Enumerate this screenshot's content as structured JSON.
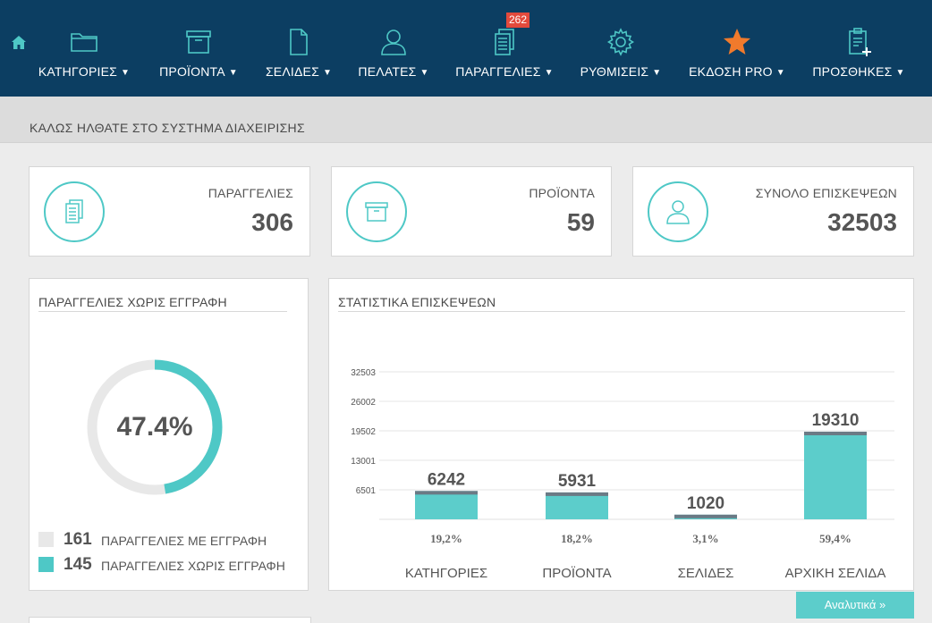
{
  "nav": {
    "home_icon": "home-icon",
    "items": [
      {
        "label": "ΚΑΤΗΓΟΡΙΕΣ",
        "icon": "folder-icon"
      },
      {
        "label": "ΠΡΟΪΟΝΤΑ",
        "icon": "archive-box-icon"
      },
      {
        "label": "ΣΕΛΙΔΕΣ",
        "icon": "page-icon"
      },
      {
        "label": "ΠΕΛΑΤΕΣ",
        "icon": "user-icon"
      },
      {
        "label": "ΠΑΡΑΓΓΕΛΙΕΣ",
        "icon": "orders-icon",
        "badge": "262"
      },
      {
        "label": "ΡΥΘΜΙΣΕΙΣ",
        "icon": "gear-icon"
      },
      {
        "label": "ΕΚΔΟΣΗ PRO",
        "icon": "star-icon"
      },
      {
        "label": "ΠΡΟΣΘΗΚΕΣ",
        "icon": "clipboard-add-icon"
      }
    ]
  },
  "page_title": "ΚΑΛΩΣ ΗΛΘΑΤΕ ΣΤΟ ΣΥΣΤΗΜΑ ΔΙΑΧΕΙΡΙΣΗΣ",
  "stats": [
    {
      "label": "ΠΑΡΑΓΓΕΛΙΕΣ",
      "value": "306",
      "icon": "orders-icon"
    },
    {
      "label": "ΠΡΟΪΟΝΤΑ",
      "value": "59",
      "icon": "archive-box-icon"
    },
    {
      "label": "ΣΥΝΟΛΟ ΕΠΙΣΚΕΨΕΩΝ",
      "value": "32503",
      "icon": "user-icon"
    }
  ],
  "guest_orders": {
    "title": "ΠΑΡΑΓΓΕΛΙΕΣ ΧΩΡΙΣ ΕΓΓΡΑΦΗ",
    "percent_label": "47.4%",
    "percent": 47.4,
    "legend": [
      {
        "count": "161",
        "label": "ΠΑΡΑΓΓΕΛΙΕΣ ΜΕ ΕΓΓΡΑΦΗ",
        "color": "#e8e8e8"
      },
      {
        "count": "145",
        "label": "ΠΑΡΑΓΓΕΛΙΕΣ ΧΩΡΙΣ ΕΓΓΡΑΦΗ",
        "color": "#4ec8c6"
      }
    ]
  },
  "visits": {
    "title": "ΣΤΑΤΙΣΤΙΚΑ ΕΠΙΣΚΕΨΕΩΝ",
    "more_label": "Αναλυτικά »"
  },
  "chart_data": {
    "type": "bar",
    "title": "ΣΤΑΤΙΣΤΙΚΑ ΕΠΙΣΚΕΨΕΩΝ",
    "categories": [
      "ΚΑΤΗΓΟΡΙΕΣ",
      "ΠΡΟΪΟΝΤΑ",
      "ΣΕΛΙΔΕΣ",
      "ΑΡΧΙΚΗ ΣΕΛΙΔΑ"
    ],
    "values": [
      6242,
      5931,
      1020,
      19310
    ],
    "value_labels": [
      "6242",
      "5931",
      "1020",
      "19310"
    ],
    "percent_labels": [
      "19,2%",
      "18,2%",
      "3,1%",
      "59,4%"
    ],
    "yticks": [
      6501,
      13001,
      19502,
      26002,
      32503
    ],
    "ytick_labels": [
      "6501",
      "13001",
      "19502",
      "26002",
      "32503"
    ],
    "ylim": [
      0,
      32503
    ],
    "grid": true,
    "bar_color": "#5ccdcb",
    "bar_cap_color": "#6b7a85"
  }
}
